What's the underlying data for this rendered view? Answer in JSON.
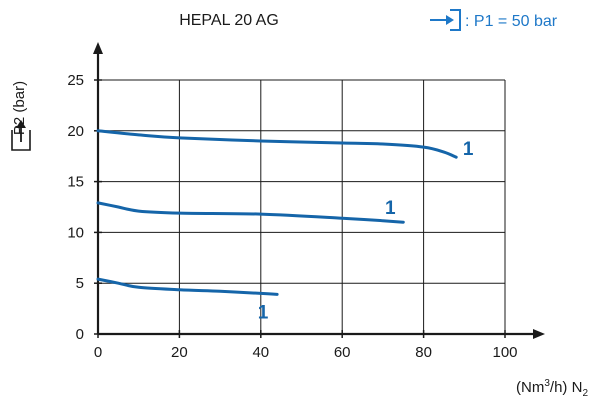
{
  "chart_data": {
    "type": "line",
    "title": "HEPAL 20 AG",
    "legend_label": ": P1 = 50 bar",
    "legend_icon": "inlet-arrow-icon",
    "ylabel": "P2 (bar)",
    "ylabel_icon": "outlet-arrow-icon",
    "xlabel_prefix": "(Nm",
    "xlabel_sup": "3",
    "xlabel_mid": "/h) N",
    "xlabel_sub": "2",
    "xlim": [
      0,
      100
    ],
    "ylim": [
      0,
      25
    ],
    "xticks": [
      "0",
      "20",
      "40",
      "60",
      "80",
      "100"
    ],
    "yticks": [
      "0",
      "5",
      "10",
      "15",
      "20",
      "25"
    ],
    "grid": true,
    "colors": {
      "curve": "#1565a9",
      "legend": "#1e78c8",
      "axis": "#1a1a1a",
      "grid": "#1a1a1a"
    },
    "series": [
      {
        "label": "1",
        "points": [
          [
            0,
            20
          ],
          [
            10,
            19.6
          ],
          [
            20,
            19.3
          ],
          [
            40,
            19.0
          ],
          [
            60,
            18.8
          ],
          [
            70,
            18.7
          ],
          [
            80,
            18.4
          ],
          [
            85,
            17.9
          ],
          [
            88,
            17.4
          ]
        ]
      },
      {
        "label": "1",
        "points": [
          [
            0,
            12.9
          ],
          [
            5,
            12.5
          ],
          [
            10,
            12.1
          ],
          [
            20,
            11.9
          ],
          [
            40,
            11.8
          ],
          [
            60,
            11.4
          ],
          [
            70,
            11.15
          ],
          [
            75,
            11.0
          ]
        ]
      },
      {
        "label": "1",
        "points": [
          [
            0,
            5.4
          ],
          [
            5,
            5.0
          ],
          [
            10,
            4.6
          ],
          [
            20,
            4.35
          ],
          [
            30,
            4.2
          ],
          [
            40,
            4.0
          ],
          [
            44,
            3.9
          ]
        ]
      }
    ]
  }
}
